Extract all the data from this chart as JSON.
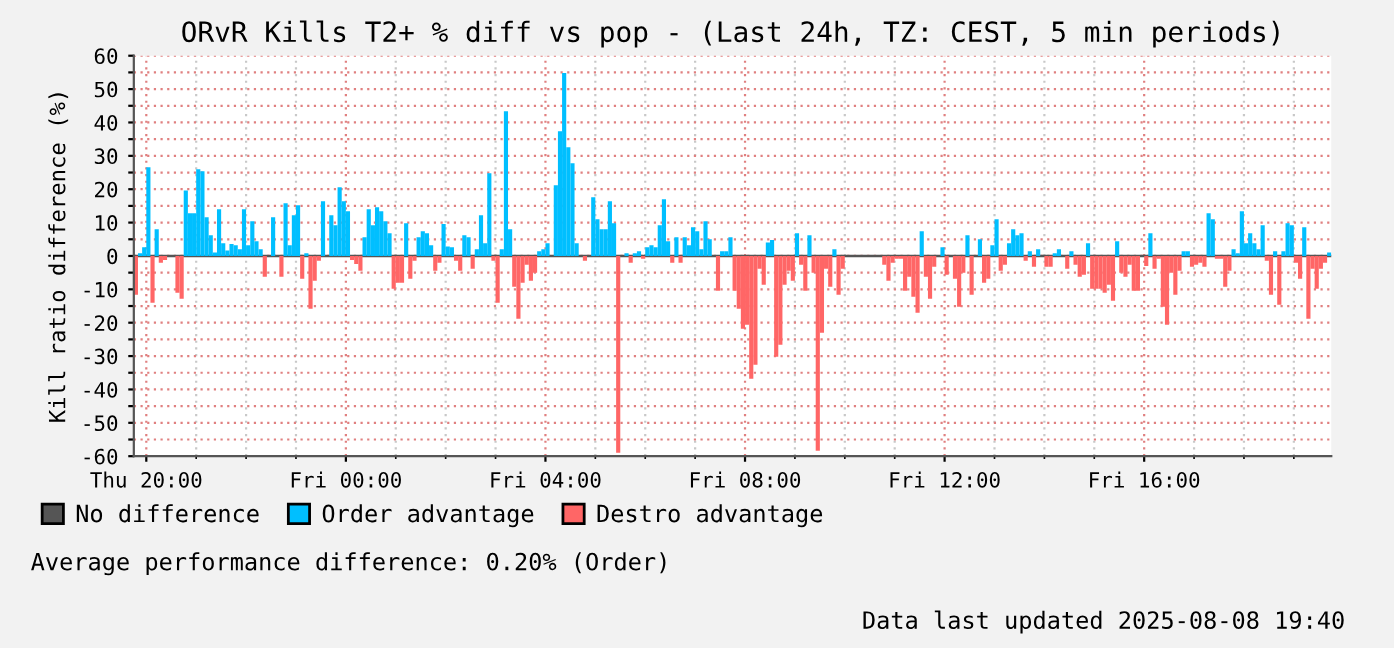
{
  "chart_data": {
    "type": "bar",
    "title": "ORvR Kills T2+ % diff vs pop - (Last 24h, TZ: CEST, 5 min periods)",
    "ylabel": "Kill ratio difference (%)",
    "x": [
      "2025-08-07T19:45",
      "2025-08-07T19:50",
      "2025-08-07T19:55",
      "2025-08-07T20:00",
      "2025-08-07T20:05",
      "2025-08-07T20:10",
      "2025-08-07T20:15",
      "2025-08-07T20:20",
      "2025-08-07T20:25",
      "2025-08-07T20:30",
      "2025-08-07T20:35",
      "2025-08-07T20:40",
      "2025-08-07T20:45",
      "2025-08-07T20:50",
      "2025-08-07T20:55",
      "2025-08-07T21:00",
      "2025-08-07T21:05",
      "2025-08-07T21:10",
      "2025-08-07T21:15",
      "2025-08-07T21:20",
      "2025-08-07T21:25",
      "2025-08-07T21:30",
      "2025-08-07T21:35",
      "2025-08-07T21:40",
      "2025-08-07T21:45",
      "2025-08-07T21:50",
      "2025-08-07T21:55",
      "2025-08-07T22:00",
      "2025-08-07T22:05",
      "2025-08-07T22:10",
      "2025-08-07T22:15",
      "2025-08-07T22:20",
      "2025-08-07T22:25",
      "2025-08-07T22:30",
      "2025-08-07T22:35",
      "2025-08-07T22:40",
      "2025-08-07T22:45",
      "2025-08-07T22:50",
      "2025-08-07T22:55",
      "2025-08-07T23:00",
      "2025-08-07T23:05",
      "2025-08-07T23:10",
      "2025-08-07T23:15",
      "2025-08-07T23:20",
      "2025-08-07T23:25",
      "2025-08-07T23:30",
      "2025-08-07T23:35",
      "2025-08-07T23:40",
      "2025-08-07T23:45",
      "2025-08-07T23:50",
      "2025-08-07T23:55",
      "2025-08-08T00:00",
      "2025-08-08T00:05",
      "2025-08-08T00:10",
      "2025-08-08T00:15",
      "2025-08-08T00:20",
      "2025-08-08T00:25",
      "2025-08-08T00:30",
      "2025-08-08T00:35",
      "2025-08-08T00:40",
      "2025-08-08T00:45",
      "2025-08-08T00:50",
      "2025-08-08T00:55",
      "2025-08-08T01:00",
      "2025-08-08T01:05",
      "2025-08-08T01:10",
      "2025-08-08T01:15",
      "2025-08-08T01:20",
      "2025-08-08T01:25",
      "2025-08-08T01:30",
      "2025-08-08T01:35",
      "2025-08-08T01:40",
      "2025-08-08T01:45",
      "2025-08-08T01:50",
      "2025-08-08T01:55",
      "2025-08-08T02:00",
      "2025-08-08T02:05",
      "2025-08-08T02:10",
      "2025-08-08T02:15",
      "2025-08-08T02:20",
      "2025-08-08T02:25",
      "2025-08-08T02:30",
      "2025-08-08T02:35",
      "2025-08-08T02:40",
      "2025-08-08T02:45",
      "2025-08-08T02:50",
      "2025-08-08T02:55",
      "2025-08-08T03:00",
      "2025-08-08T03:05",
      "2025-08-08T03:10",
      "2025-08-08T03:15",
      "2025-08-08T03:20",
      "2025-08-08T03:25",
      "2025-08-08T03:30",
      "2025-08-08T03:35",
      "2025-08-08T03:40",
      "2025-08-08T03:45",
      "2025-08-08T03:50",
      "2025-08-08T03:55",
      "2025-08-08T04:00",
      "2025-08-08T04:05",
      "2025-08-08T04:10",
      "2025-08-08T04:15",
      "2025-08-08T04:20",
      "2025-08-08T04:25",
      "2025-08-08T04:30",
      "2025-08-08T04:35",
      "2025-08-08T04:40",
      "2025-08-08T04:45",
      "2025-08-08T04:50",
      "2025-08-08T04:55",
      "2025-08-08T05:00",
      "2025-08-08T05:05",
      "2025-08-08T05:10",
      "2025-08-08T05:15",
      "2025-08-08T05:20",
      "2025-08-08T05:25",
      "2025-08-08T05:30",
      "2025-08-08T05:35",
      "2025-08-08T05:40",
      "2025-08-08T05:45",
      "2025-08-08T05:50",
      "2025-08-08T05:55",
      "2025-08-08T06:00",
      "2025-08-08T06:05",
      "2025-08-08T06:10",
      "2025-08-08T06:15",
      "2025-08-08T06:20",
      "2025-08-08T06:25",
      "2025-08-08T06:30",
      "2025-08-08T06:35",
      "2025-08-08T06:40",
      "2025-08-08T06:45",
      "2025-08-08T06:50",
      "2025-08-08T06:55",
      "2025-08-08T07:00",
      "2025-08-08T07:05",
      "2025-08-08T07:10",
      "2025-08-08T07:15",
      "2025-08-08T07:20",
      "2025-08-08T07:25",
      "2025-08-08T07:30",
      "2025-08-08T07:35",
      "2025-08-08T07:40",
      "2025-08-08T07:45",
      "2025-08-08T07:50",
      "2025-08-08T07:55",
      "2025-08-08T08:00",
      "2025-08-08T08:05",
      "2025-08-08T08:10",
      "2025-08-08T08:15",
      "2025-08-08T08:20",
      "2025-08-08T08:25",
      "2025-08-08T08:30",
      "2025-08-08T08:35",
      "2025-08-08T08:40",
      "2025-08-08T08:45",
      "2025-08-08T08:50",
      "2025-08-08T08:55",
      "2025-08-08T09:00",
      "2025-08-08T09:05",
      "2025-08-08T09:10",
      "2025-08-08T09:15",
      "2025-08-08T09:20",
      "2025-08-08T09:25",
      "2025-08-08T09:30",
      "2025-08-08T09:35",
      "2025-08-08T09:40",
      "2025-08-08T09:45",
      "2025-08-08T09:50",
      "2025-08-08T09:55",
      "2025-08-08T10:00",
      "2025-08-08T10:05",
      "2025-08-08T10:10",
      "2025-08-08T10:15",
      "2025-08-08T10:20",
      "2025-08-08T10:25",
      "2025-08-08T10:30",
      "2025-08-08T10:35",
      "2025-08-08T10:40",
      "2025-08-08T10:45",
      "2025-08-08T10:50",
      "2025-08-08T10:55",
      "2025-08-08T11:00",
      "2025-08-08T11:05",
      "2025-08-08T11:10",
      "2025-08-08T11:15",
      "2025-08-08T11:20",
      "2025-08-08T11:25",
      "2025-08-08T11:30",
      "2025-08-08T11:35",
      "2025-08-08T11:40",
      "2025-08-08T11:45",
      "2025-08-08T11:50",
      "2025-08-08T11:55",
      "2025-08-08T12:00",
      "2025-08-08T12:05",
      "2025-08-08T12:10",
      "2025-08-08T12:15",
      "2025-08-08T12:20",
      "2025-08-08T12:25",
      "2025-08-08T12:30",
      "2025-08-08T12:35",
      "2025-08-08T12:40",
      "2025-08-08T12:45",
      "2025-08-08T12:50",
      "2025-08-08T12:55",
      "2025-08-08T13:00",
      "2025-08-08T13:05",
      "2025-08-08T13:10",
      "2025-08-08T13:15",
      "2025-08-08T13:20",
      "2025-08-08T13:25",
      "2025-08-08T13:30",
      "2025-08-08T13:35",
      "2025-08-08T13:40",
      "2025-08-08T13:45",
      "2025-08-08T13:50",
      "2025-08-08T13:55",
      "2025-08-08T14:00",
      "2025-08-08T14:05",
      "2025-08-08T14:10",
      "2025-08-08T14:15",
      "2025-08-08T14:20",
      "2025-08-08T14:25",
      "2025-08-08T14:30",
      "2025-08-08T14:35",
      "2025-08-08T14:40",
      "2025-08-08T14:45",
      "2025-08-08T14:50",
      "2025-08-08T14:55",
      "2025-08-08T15:00",
      "2025-08-08T15:05",
      "2025-08-08T15:10",
      "2025-08-08T15:15",
      "2025-08-08T15:20",
      "2025-08-08T15:25",
      "2025-08-08T15:30",
      "2025-08-08T15:35",
      "2025-08-08T15:40",
      "2025-08-08T15:45",
      "2025-08-08T15:50",
      "2025-08-08T15:55",
      "2025-08-08T16:00",
      "2025-08-08T16:05",
      "2025-08-08T16:10",
      "2025-08-08T16:15",
      "2025-08-08T16:20",
      "2025-08-08T16:25",
      "2025-08-08T16:30",
      "2025-08-08T16:35",
      "2025-08-08T16:40",
      "2025-08-08T16:45",
      "2025-08-08T16:50",
      "2025-08-08T16:55",
      "2025-08-08T17:00",
      "2025-08-08T17:05",
      "2025-08-08T17:10",
      "2025-08-08T17:15",
      "2025-08-08T17:20",
      "2025-08-08T17:25",
      "2025-08-08T17:30",
      "2025-08-08T17:35",
      "2025-08-08T17:40",
      "2025-08-08T17:45",
      "2025-08-08T17:50",
      "2025-08-08T17:55",
      "2025-08-08T18:00",
      "2025-08-08T18:05",
      "2025-08-08T18:10",
      "2025-08-08T18:15",
      "2025-08-08T18:20",
      "2025-08-08T18:25",
      "2025-08-08T18:30",
      "2025-08-08T18:35",
      "2025-08-08T18:40",
      "2025-08-08T18:45",
      "2025-08-08T18:50",
      "2025-08-08T18:55",
      "2025-08-08T19:00",
      "2025-08-08T19:05",
      "2025-08-08T19:10",
      "2025-08-08T19:15",
      "2025-08-08T19:20",
      "2025-08-08T19:25",
      "2025-08-08T19:30",
      "2025-08-08T19:35",
      "2025-08-08T19:40"
    ],
    "series": [
      {
        "name": "Order advantage",
        "color": "#00bfff",
        "values": [
          null,
          0.8,
          2.6,
          26.6,
          null,
          8,
          null,
          null,
          null,
          null,
          null,
          null,
          19.6,
          12.8,
          12.8,
          26,
          25.4,
          11.6,
          6.2,
          1,
          14,
          3.8,
          1.6,
          3.6,
          3.2,
          2,
          14,
          3.2,
          10.4,
          4.4,
          2,
          null,
          null,
          11.6,
          null,
          null,
          15.8,
          3.2,
          12.2,
          15.2,
          null,
          0.8,
          null,
          null,
          null,
          16.4,
          null,
          12.2,
          9.2,
          20.6,
          16.4,
          13.4,
          null,
          null,
          null,
          5.6,
          14,
          9.2,
          14.6,
          13.4,
          10.4,
          6.8,
          null,
          null,
          null,
          9.8,
          null,
          null,
          5.6,
          7.4,
          6.8,
          3.2,
          null,
          null,
          9.6,
          2.8,
          2.6,
          null,
          null,
          6.2,
          5.6,
          null,
          2,
          12.2,
          3.8,
          24.8,
          null,
          null,
          2,
          43.4,
          8,
          null,
          null,
          null,
          null,
          null,
          null,
          1.4,
          2,
          3.8,
          null,
          21.2,
          37.4,
          54.8,
          32.6,
          27.8,
          3.8,
          null,
          null,
          null,
          17.6,
          11,
          8,
          8,
          16.4,
          9.8,
          null,
          null,
          0.8,
          null,
          0.8,
          1.4,
          null,
          2.6,
          3.2,
          2.6,
          9.2,
          17,
          4.4,
          null,
          5.6,
          null,
          5.6,
          3.2,
          8.6,
          7.4,
          2,
          10.4,
          5,
          null,
          null,
          1.4,
          1.4,
          5.6,
          null,
          null,
          null,
          null,
          null,
          null,
          null,
          null,
          4,
          4.8,
          null,
          null,
          null,
          null,
          null,
          6.8,
          null,
          null,
          6.2,
          null,
          null,
          null,
          null,
          null,
          2,
          null,
          null,
          null,
          null,
          null,
          null,
          null,
          null,
          null,
          null,
          null,
          null,
          null,
          null,
          null,
          null,
          null,
          null,
          null,
          null,
          7.4,
          null,
          null,
          null,
          null,
          2.6,
          null,
          null,
          null,
          null,
          null,
          6.2,
          null,
          null,
          5,
          null,
          null,
          3.2,
          11,
          null,
          null,
          3.8,
          8,
          6.2,
          6.8,
          null,
          1.4,
          null,
          2,
          null,
          null,
          null,
          0.8,
          2,
          null,
          null,
          1.4,
          null,
          null,
          null,
          3.8,
          null,
          null,
          null,
          null,
          null,
          null,
          4.4,
          null,
          null,
          null,
          null,
          null,
          null,
          null,
          6.8,
          null,
          null,
          null,
          null,
          null,
          null,
          null,
          1.4,
          1.4,
          null,
          null,
          null,
          null,
          12.8,
          11,
          null,
          null,
          null,
          null,
          2,
          0.8,
          13.4,
          3.8,
          6.8,
          3.8,
          2,
          9.2,
          null,
          null,
          1.4,
          null,
          1.4,
          9.8,
          9.2,
          null,
          null,
          8.6,
          null,
          null,
          null,
          null,
          null,
          1
        ]
      },
      {
        "name": "Destro advantage",
        "color": "#ff6666",
        "values": [
          -11.6,
          null,
          null,
          null,
          -14,
          null,
          -2,
          -1.2,
          null,
          null,
          -11,
          -12.8,
          null,
          null,
          null,
          null,
          null,
          null,
          null,
          null,
          null,
          null,
          null,
          null,
          null,
          null,
          null,
          null,
          null,
          null,
          null,
          -6.2,
          null,
          null,
          null,
          -6.2,
          null,
          null,
          null,
          null,
          -6.8,
          null,
          -15.8,
          -7.4,
          -1.4,
          null,
          null,
          null,
          null,
          null,
          null,
          null,
          -1.2,
          -2.4,
          -4.4,
          null,
          null,
          null,
          null,
          null,
          null,
          null,
          -9.8,
          -8,
          -8,
          null,
          -6.8,
          -1.4,
          null,
          null,
          null,
          null,
          -4.4,
          -2,
          null,
          null,
          null,
          -1.4,
          -4.4,
          null,
          null,
          -3.8,
          null,
          null,
          null,
          null,
          -1.4,
          -14,
          null,
          null,
          null,
          -9.2,
          -18.8,
          -8,
          -2.6,
          -7.4,
          -5,
          null,
          null,
          null,
          null,
          null,
          null,
          null,
          null,
          null,
          null,
          null,
          -1.4,
          null,
          null,
          null,
          null,
          null,
          null,
          null,
          -59,
          null,
          null,
          -2,
          null,
          null,
          -0.8,
          null,
          null,
          null,
          null,
          null,
          null,
          -2,
          null,
          -2,
          null,
          null,
          null,
          null,
          null,
          null,
          null,
          null,
          -10.4,
          null,
          null,
          null,
          -10.4,
          -15.8,
          -21.8,
          -20.6,
          -36.8,
          -32.6,
          -3.8,
          -8.6,
          null,
          null,
          -30.2,
          -26.6,
          -8.6,
          -4.4,
          -7.4,
          null,
          -2.6,
          -10.4,
          null,
          -5,
          -58.4,
          -23,
          -3.8,
          -9.2,
          null,
          -11.6,
          -3.8,
          null,
          null,
          null,
          null,
          null,
          null,
          null,
          null,
          null,
          -2.6,
          -7.4,
          -2,
          -0.8,
          -0.8,
          -10.4,
          -6.2,
          -12.2,
          -17,
          null,
          -6.2,
          -12.8,
          -3.2,
          null,
          null,
          -5.6,
          null,
          -6.8,
          -15.2,
          -5,
          null,
          -11.6,
          null,
          null,
          -8,
          -6.8,
          null,
          null,
          -4.4,
          -2.6,
          null,
          null,
          null,
          null,
          -1.4,
          null,
          -3.2,
          null,
          null,
          -3.2,
          -3.2,
          null,
          null,
          null,
          -3.8,
          null,
          -2.6,
          -6.2,
          -5.6,
          null,
          -9.8,
          -9.8,
          -9.8,
          -11,
          -8.6,
          -13.4,
          null,
          -5,
          -6.2,
          -2.6,
          -10.4,
          -10.4,
          null,
          -3,
          null,
          -3.8,
          -0.8,
          -15.2,
          -20.6,
          -5,
          -11.6,
          -4.4,
          null,
          null,
          -3.2,
          -2.6,
          -2,
          -3.2,
          null,
          null,
          -0.8,
          -0.8,
          -9.2,
          -4.4,
          null,
          null,
          null,
          null,
          null,
          null,
          null,
          null,
          -1.4,
          -11.6,
          null,
          -14.6,
          null,
          null,
          null,
          -2,
          -6.8,
          null,
          -18.8,
          -3.8,
          -9.8,
          -3.8,
          -2,
          null
        ]
      }
    ],
    "ref_lines": [
      {
        "axis": "y",
        "value": 0,
        "label": "No difference",
        "color": "#555555"
      }
    ],
    "xlim": [
      "2025-08-07T19:45",
      "2025-08-08T19:45"
    ],
    "xticks": [
      {
        "value": "2025-08-07T20:00",
        "label": "Thu 20:00"
      },
      {
        "value": "2025-08-07T21:00",
        "label": null
      },
      {
        "value": "2025-08-07T22:00",
        "label": null
      },
      {
        "value": "2025-08-07T23:00",
        "label": null
      },
      {
        "value": "2025-08-08T00:00",
        "label": "Fri 00:00"
      },
      {
        "value": "2025-08-08T01:00",
        "label": null
      },
      {
        "value": "2025-08-08T02:00",
        "label": null
      },
      {
        "value": "2025-08-08T03:00",
        "label": null
      },
      {
        "value": "2025-08-08T04:00",
        "label": "Fri 04:00"
      },
      {
        "value": "2025-08-08T05:00",
        "label": null
      },
      {
        "value": "2025-08-08T06:00",
        "label": null
      },
      {
        "value": "2025-08-08T07:00",
        "label": null
      },
      {
        "value": "2025-08-08T08:00",
        "label": "Fri 08:00"
      },
      {
        "value": "2025-08-08T09:00",
        "label": null
      },
      {
        "value": "2025-08-08T10:00",
        "label": null
      },
      {
        "value": "2025-08-08T11:00",
        "label": null
      },
      {
        "value": "2025-08-08T12:00",
        "label": "Fri 12:00"
      },
      {
        "value": "2025-08-08T13:00",
        "label": null
      },
      {
        "value": "2025-08-08T14:00",
        "label": null
      },
      {
        "value": "2025-08-08T15:00",
        "label": null
      },
      {
        "value": "2025-08-08T16:00",
        "label": "Fri 16:00"
      },
      {
        "value": "2025-08-08T17:00",
        "label": null
      },
      {
        "value": "2025-08-08T18:00",
        "label": null
      },
      {
        "value": "2025-08-08T19:00",
        "label": null
      }
    ],
    "ylim": [
      -60,
      60
    ],
    "yticks": [
      -60,
      {
        "value": -55,
        "label": null
      },
      -50,
      {
        "value": -45,
        "label": null
      },
      -40,
      {
        "value": -35,
        "label": null
      },
      -30,
      {
        "value": -25,
        "label": null
      },
      -20,
      {
        "value": -15,
        "label": null
      },
      -10,
      {
        "value": -5,
        "label": null
      },
      0,
      {
        "value": 5,
        "label": null
      },
      10,
      {
        "value": 15,
        "label": null
      },
      20,
      {
        "value": 25,
        "label": null
      },
      30,
      {
        "value": 35,
        "label": null
      },
      40,
      {
        "value": 45,
        "label": null
      },
      50,
      {
        "value": 55,
        "label": null
      },
      60
    ],
    "grid": true,
    "legend": "bottom",
    "annotations": [
      "Average performance difference: 0.20% (Order)",
      "Data last updated 2025-08-08 19:40"
    ]
  }
}
